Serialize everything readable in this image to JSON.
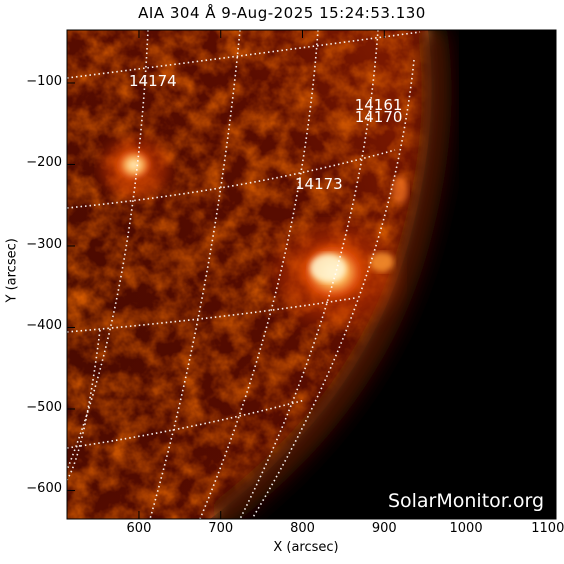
{
  "title": "AIA 304 Å  9-Aug-2025 15:24:53.130",
  "xlabel": "X (arcsec)",
  "ylabel": "Y (arcsec)",
  "watermark": "SolarMonitor.org",
  "x_ticks": [
    {
      "value": 600,
      "label": "600"
    },
    {
      "value": 700,
      "label": "700"
    },
    {
      "value": 800,
      "label": "800"
    },
    {
      "value": 900,
      "label": "900"
    },
    {
      "value": 1000,
      "label": "1000"
    },
    {
      "value": 1100,
      "label": "1100"
    }
  ],
  "y_ticks": [
    {
      "value": -100,
      "label": "−100"
    },
    {
      "value": -200,
      "label": "−200"
    },
    {
      "value": -300,
      "label": "−300"
    },
    {
      "value": -400,
      "label": "−400"
    },
    {
      "value": -500,
      "label": "−500"
    },
    {
      "value": -600,
      "label": "−600"
    }
  ],
  "x_range": [
    512,
    1110
  ],
  "y_range": [
    -635,
    -35
  ],
  "regions": [
    {
      "label": "14174",
      "x": 617,
      "y": -104
    },
    {
      "label": "14161",
      "x": 893,
      "y": -133
    },
    {
      "label": "14170",
      "x": 893,
      "y": -148
    },
    {
      "label": "14173",
      "x": 820,
      "y": -230
    }
  ],
  "colors": {
    "background": "#000000",
    "disk_dark": "#3a0500",
    "disk_mid": "#8a1a00",
    "bright": "#ff9a30",
    "core": "#fff2c8",
    "grid": "#ffffff"
  }
}
